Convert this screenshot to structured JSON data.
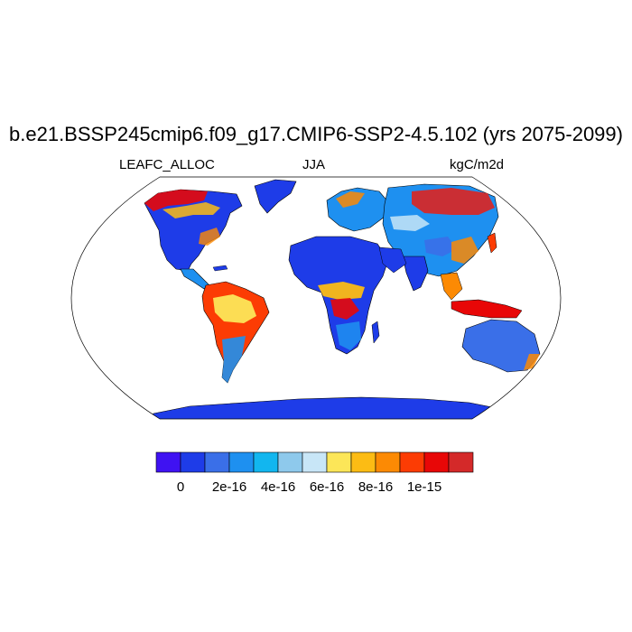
{
  "title": "b.e21.BSSP245cmip6.f09_g17.CMIP6-SSP2-4.5.102 (yrs 2075-2099)",
  "subtitles": {
    "left": "LEAFC_ALLOC",
    "center": "JJA",
    "right": "kgC/m2d"
  },
  "colorbar": {
    "colors": [
      "#3f12f2",
      "#1e3ce8",
      "#3a6fe8",
      "#1e90f0",
      "#12b6ef",
      "#8ec9ec",
      "#c8e6f7",
      "#fce658",
      "#fcbc14",
      "#fc8a04",
      "#fc3c04",
      "#e80707",
      "#d42929"
    ],
    "labels": [
      "0",
      "2e-16",
      "4e-16",
      "6e-16",
      "8e-16",
      "1e-15"
    ],
    "label_after_box": [
      1,
      3,
      5,
      7,
      9,
      11
    ]
  },
  "colors": {
    "ocean": "#ffffff",
    "outline": "#000000",
    "land_base": "#1e3ce8"
  }
}
